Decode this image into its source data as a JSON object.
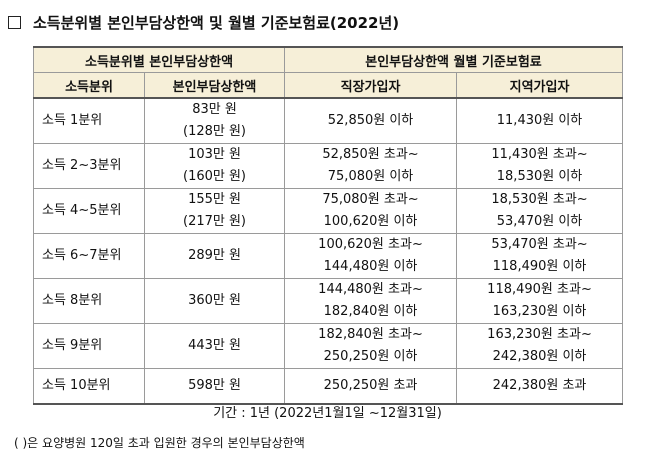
{
  "title": "소득분위별 본인부담상한액 및 월별 기준보험료(2022년)",
  "header": {
    "group_left": "소득분위별 본인부담상한액",
    "group_right": "본인부담상한액 월별 기준보험료",
    "col_income": "소득분위",
    "col_cap": "본인부담상한액",
    "col_employee": "직장가입자",
    "col_regional": "지역가입자"
  },
  "rows": [
    {
      "income": "소득 1분위",
      "cap": [
        "83만 원",
        "(128만 원)"
      ],
      "employee": [
        "52,850원 이하"
      ],
      "regional": [
        "11,430원 이하"
      ]
    },
    {
      "income": "소득 2~3분위",
      "cap": [
        "103만 원",
        "(160만 원)"
      ],
      "employee": [
        "52,850원 초과~",
        "75,080원 이하"
      ],
      "regional": [
        "11,430원 초과~",
        "18,530원 이하"
      ]
    },
    {
      "income": "소득 4~5분위",
      "cap": [
        "155만 원",
        "(217만 원)"
      ],
      "employee": [
        "75,080원 초과~",
        "100,620원 이하"
      ],
      "regional": [
        "18,530원 초과~",
        "53,470원 이하"
      ]
    },
    {
      "income": "소득 6~7분위",
      "cap": [
        "289만 원"
      ],
      "employee": [
        "100,620원 초과~",
        "144,480원 이하"
      ],
      "regional": [
        "53,470원 초과~",
        "118,490원 이하"
      ]
    },
    {
      "income": "소득 8분위",
      "cap": [
        "360만 원"
      ],
      "employee": [
        "144,480원 초과~",
        "182,840원 이하"
      ],
      "regional": [
        "118,490원 초과~",
        "163,230원 이하"
      ]
    },
    {
      "income": "소득 9분위",
      "cap": [
        "443만 원"
      ],
      "employee": [
        "182,840원 초과~",
        "250,250원 이하"
      ],
      "regional": [
        "163,230원 초과~",
        "242,380원 이하"
      ]
    },
    {
      "income": "소득 10분위",
      "cap": [
        "598만 원"
      ],
      "employee": [
        "250,250원 초과"
      ],
      "regional": [
        "242,380원 초과"
      ]
    }
  ],
  "period": "기간 : 1년 (2022년1월1일 ~12월31일)",
  "note": "(   )은 요양병원 120일 초과 입원한 경우의 본인부담상한액"
}
